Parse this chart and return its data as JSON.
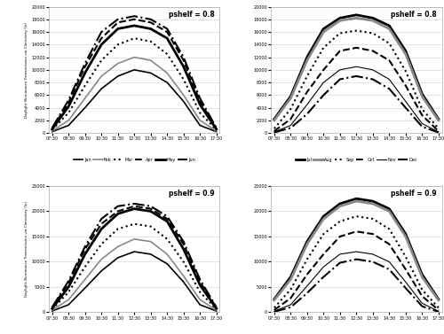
{
  "time_labels": [
    "07:30",
    "08:30",
    "09:30",
    "10:30",
    "11:30",
    "12:30",
    "13:30",
    "14:30",
    "15:30",
    "16:30",
    "17:30"
  ],
  "ylabel": "Daylight Illuminance Transmission via Clerestory (lx)",
  "background_color": "#ffffff",
  "panel_top_left": {
    "title": "pshelf = 0.8",
    "ylim": [
      0,
      20000
    ],
    "yticks": [
      0,
      2000,
      4000,
      6000,
      8000,
      10000,
      12000,
      14000,
      16000,
      18000,
      20000
    ],
    "series": [
      {
        "label": "Jan",
        "linestyle": "solid",
        "color": "#000000",
        "linewidth": 1.2,
        "values": [
          200,
          1200,
          4000,
          7000,
          9000,
          10000,
          9500,
          8000,
          5000,
          1200,
          200
        ]
      },
      {
        "label": "Feb",
        "linestyle": "solid",
        "color": "#888888",
        "linewidth": 1.2,
        "values": [
          300,
          2000,
          5500,
          9000,
          11000,
          12000,
          11500,
          9500,
          6000,
          2000,
          300
        ]
      },
      {
        "label": "Mar",
        "linestyle": "dotted",
        "color": "#000000",
        "linewidth": 1.5,
        "values": [
          500,
          3200,
          7500,
          11500,
          14000,
          15000,
          14500,
          12500,
          8500,
          3200,
          500
        ]
      },
      {
        "label": "Apr",
        "linestyle": "dashed",
        "color": "#000000",
        "linewidth": 1.5,
        "values": [
          700,
          4800,
          10500,
          15000,
          17500,
          18000,
          17500,
          16000,
          11500,
          5000,
          700
        ]
      },
      {
        "label": "May",
        "linestyle": "solid",
        "color": "#000000",
        "linewidth": 2.0,
        "values": [
          600,
          4200,
          9500,
          14000,
          16500,
          17000,
          16500,
          15000,
          10500,
          4500,
          600
        ]
      },
      {
        "label": "Jun",
        "linestyle": "dashdot",
        "color": "#000000",
        "linewidth": 1.5,
        "values": [
          800,
          5200,
          11000,
          16000,
          18000,
          18500,
          18000,
          16500,
          12000,
          5500,
          800
        ]
      }
    ]
  },
  "panel_top_right": {
    "title": "pshelf = 0.8",
    "ylim": [
      0,
      20000
    ],
    "yticks": [
      0,
      2000,
      4000,
      6000,
      8000,
      10000,
      12000,
      14000,
      16000,
      18000,
      20000
    ],
    "series": [
      {
        "label": "Jul",
        "linestyle": "solid",
        "color": "#000000",
        "linewidth": 2.0,
        "values": [
          2200,
          5800,
          12000,
          16500,
          18200,
          18700,
          18200,
          17000,
          13000,
          6200,
          2200
        ]
      },
      {
        "label": "Aug",
        "linestyle": "solid",
        "color": "#888888",
        "linewidth": 2.0,
        "values": [
          2000,
          5500,
          11500,
          16000,
          17800,
          18200,
          17800,
          16500,
          12500,
          5800,
          2000
        ]
      },
      {
        "label": "Sep",
        "linestyle": "dotted",
        "color": "#000000",
        "linewidth": 1.5,
        "values": [
          700,
          3800,
          9000,
          13500,
          15800,
          16200,
          15800,
          14200,
          9800,
          3800,
          700
        ]
      },
      {
        "label": "Oct",
        "linestyle": "dashed",
        "color": "#000000",
        "linewidth": 1.5,
        "values": [
          300,
          2200,
          6500,
          10000,
          13000,
          13500,
          13000,
          11500,
          7500,
          2800,
          300
        ]
      },
      {
        "label": "Nov",
        "linestyle": "solid",
        "color": "#000000",
        "linewidth": 0.8,
        "values": [
          150,
          1200,
          4500,
          8000,
          10000,
          10500,
          10000,
          8500,
          5000,
          1500,
          150
        ]
      },
      {
        "label": "Dec",
        "linestyle": "dashdot",
        "color": "#000000",
        "linewidth": 1.5,
        "values": [
          80,
          800,
          3000,
          6000,
          8500,
          9000,
          8500,
          7000,
          4000,
          1000,
          80
        ]
      }
    ]
  },
  "panel_bot_left": {
    "title": "pshelf = 0.9",
    "ylim": [
      0,
      25000
    ],
    "yticks": [
      0,
      5000,
      10000,
      15000,
      20000,
      25000
    ],
    "series": [
      {
        "label": "Jan",
        "linestyle": "solid",
        "color": "#000000",
        "linewidth": 1.2,
        "values": [
          250,
          1500,
          4800,
          8200,
          10800,
          12000,
          11500,
          9600,
          6000,
          1500,
          250
        ]
      },
      {
        "label": "Feb",
        "linestyle": "solid",
        "color": "#888888",
        "linewidth": 1.2,
        "values": [
          400,
          2500,
          6500,
          10500,
          13000,
          14500,
          14000,
          11500,
          7200,
          2500,
          400
        ]
      },
      {
        "label": "Mar",
        "linestyle": "dotted",
        "color": "#000000",
        "linewidth": 1.5,
        "values": [
          600,
          4000,
          9000,
          13500,
          16500,
          17500,
          17000,
          14500,
          10000,
          4000,
          600
        ]
      },
      {
        "label": "Apr",
        "linestyle": "dashed",
        "color": "#000000",
        "linewidth": 1.5,
        "values": [
          900,
          5800,
          12500,
          17500,
          20000,
          21000,
          20500,
          18500,
          13500,
          6000,
          900
        ]
      },
      {
        "label": "May",
        "linestyle": "solid",
        "color": "#000000",
        "linewidth": 2.0,
        "values": [
          750,
          5000,
          11500,
          16500,
          19500,
          20500,
          20000,
          18000,
          12500,
          5400,
          750
        ]
      },
      {
        "label": "Jun",
        "linestyle": "dashdot",
        "color": "#000000",
        "linewidth": 1.5,
        "values": [
          1000,
          6200,
          13000,
          18500,
          21000,
          21500,
          21000,
          19000,
          14000,
          6500,
          1000
        ]
      }
    ]
  },
  "panel_bot_right": {
    "title": "pshelf = 0.9",
    "ylim": [
      0,
      25000
    ],
    "yticks": [
      0,
      5000,
      10000,
      15000,
      20000,
      25000
    ],
    "series": [
      {
        "label": "Jul",
        "linestyle": "solid",
        "color": "#000000",
        "linewidth": 2.0,
        "values": [
          2600,
          7000,
          14000,
          19000,
          21500,
          22500,
          22000,
          20500,
          15500,
          7500,
          2600
        ]
      },
      {
        "label": "Aug",
        "linestyle": "solid",
        "color": "#888888",
        "linewidth": 2.0,
        "values": [
          2400,
          6500,
          13500,
          18500,
          21000,
          22000,
          21500,
          20000,
          15000,
          7000,
          2400
        ]
      },
      {
        "label": "Sep",
        "linestyle": "dotted",
        "color": "#000000",
        "linewidth": 1.5,
        "values": [
          900,
          4500,
          10500,
          15500,
          18000,
          19000,
          18500,
          16500,
          11000,
          4500,
          900
        ]
      },
      {
        "label": "Oct",
        "linestyle": "dashed",
        "color": "#000000",
        "linewidth": 1.5,
        "values": [
          450,
          2800,
          7500,
          11500,
          15000,
          16000,
          15500,
          13500,
          8500,
          3200,
          450
        ]
      },
      {
        "label": "Nov",
        "linestyle": "solid",
        "color": "#000000",
        "linewidth": 0.8,
        "values": [
          200,
          1500,
          5200,
          9000,
          11500,
          12000,
          11500,
          10000,
          6000,
          1800,
          200
        ]
      },
      {
        "label": "Dec",
        "linestyle": "dashdot",
        "color": "#000000",
        "linewidth": 1.5,
        "values": [
          100,
          1000,
          3800,
          7000,
          9800,
          10500,
          10000,
          8500,
          4800,
          1200,
          100
        ]
      }
    ]
  },
  "legend_left": [
    {
      "label": "Jan",
      "linestyle": "solid",
      "color": "#000000",
      "linewidth": 1.2
    },
    {
      "label": "Feb",
      "linestyle": "solid",
      "color": "#888888",
      "linewidth": 1.2
    },
    {
      "label": "Mar",
      "linestyle": "dotted",
      "color": "#000000",
      "linewidth": 1.5
    },
    {
      "label": "Apr",
      "linestyle": "dashed",
      "color": "#000000",
      "linewidth": 1.5
    },
    {
      "label": "May",
      "linestyle": "solid",
      "color": "#000000",
      "linewidth": 2.0
    },
    {
      "label": "Jun",
      "linestyle": "dashdot",
      "color": "#000000",
      "linewidth": 1.5
    }
  ],
  "legend_right": [
    {
      "label": "Jul",
      "linestyle": "solid",
      "color": "#000000",
      "linewidth": 2.0
    },
    {
      "label": "Aug",
      "linestyle": "solid",
      "color": "#888888",
      "linewidth": 2.0
    },
    {
      "label": "Sep",
      "linestyle": "dotted",
      "color": "#000000",
      "linewidth": 1.5
    },
    {
      "label": "Oct",
      "linestyle": "dashed",
      "color": "#000000",
      "linewidth": 1.5
    },
    {
      "label": "Nov",
      "linestyle": "solid",
      "color": "#000000",
      "linewidth": 0.8
    },
    {
      "label": "Dec",
      "linestyle": "dashdot",
      "color": "#000000",
      "linewidth": 1.5
    }
  ]
}
